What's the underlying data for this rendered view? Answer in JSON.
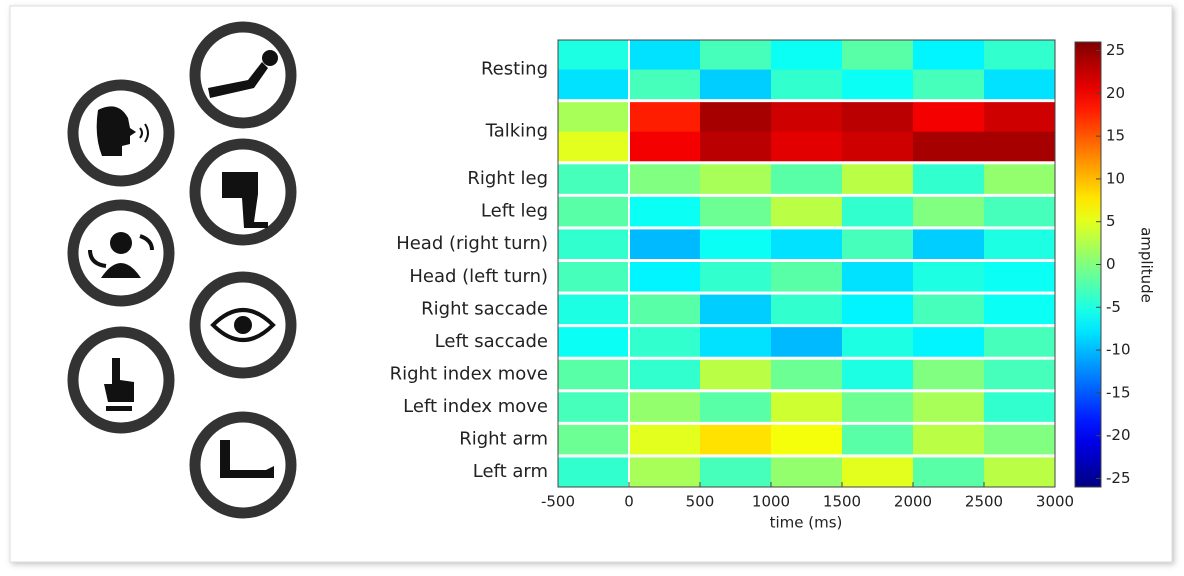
{
  "chart_data": {
    "type": "heatmap",
    "x_label": "time (ms)",
    "colorbar_label": "amplitude",
    "bins": [
      -500,
      0,
      500,
      1000,
      1500,
      2000,
      2500,
      3000
    ],
    "xlim": [
      -500,
      3000
    ],
    "xticks": [
      -500,
      0,
      500,
      1000,
      1500,
      2000,
      2500,
      3000
    ],
    "vline": 0,
    "clim": [
      -26,
      26
    ],
    "cticks": [
      25,
      20,
      15,
      10,
      5,
      0,
      -5,
      -10,
      -15,
      -20,
      -25
    ],
    "colormap": "jet",
    "rows": [
      {
        "name": "Resting",
        "values": [
          [
            -5,
            -8,
            -3,
            -6,
            -2,
            -7,
            -4
          ],
          [
            -8,
            -3,
            -9,
            -4,
            -6,
            -3,
            -8
          ]
        ]
      },
      {
        "name": "Talking",
        "values": [
          [
            2,
            18,
            24,
            22,
            23,
            20,
            22
          ],
          [
            5,
            20,
            23,
            21,
            22,
            24,
            24
          ]
        ]
      },
      {
        "name": "Right leg",
        "values": [
          [
            -3,
            0,
            2,
            -2,
            3,
            -4,
            1
          ]
        ]
      },
      {
        "name": "Left leg",
        "values": [
          [
            -2,
            -6,
            -1,
            3,
            -4,
            0,
            -3
          ]
        ]
      },
      {
        "name": "Head (right turn)",
        "values": [
          [
            -4,
            -10,
            -6,
            -8,
            -3,
            -9,
            -5
          ]
        ]
      },
      {
        "name": "Head (left turn)",
        "values": [
          [
            -3,
            -7,
            -4,
            -2,
            -8,
            -5,
            -6
          ]
        ]
      },
      {
        "name": "Right saccade",
        "values": [
          [
            -5,
            -2,
            -9,
            -4,
            -7,
            -3,
            -6
          ]
        ]
      },
      {
        "name": "Left saccade",
        "values": [
          [
            -6,
            -4,
            -8,
            -10,
            -5,
            -7,
            -3
          ]
        ]
      },
      {
        "name": "Right index move",
        "values": [
          [
            -2,
            -4,
            3,
            -1,
            -5,
            0,
            -3
          ]
        ]
      },
      {
        "name": "Left index move",
        "values": [
          [
            -3,
            1,
            -2,
            4,
            -1,
            2,
            -4
          ]
        ]
      },
      {
        "name": "Right arm",
        "values": [
          [
            -1,
            5,
            8,
            6,
            -2,
            3,
            0
          ]
        ]
      },
      {
        "name": "Left arm",
        "values": [
          [
            -4,
            2,
            -3,
            1,
            5,
            -2,
            3
          ]
        ]
      }
    ]
  }
}
